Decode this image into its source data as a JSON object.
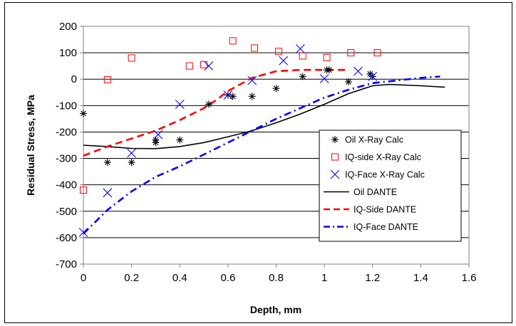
{
  "chart_data": {
    "type": "scatter",
    "xlabel": "Depth, mm",
    "ylabel": "Residual Stress, MPa",
    "xlim": [
      0,
      1.6
    ],
    "ylim": [
      -700,
      200
    ],
    "xticks": [
      "0",
      "0.2",
      "0.4",
      "0.6",
      "0.8",
      "1",
      "1.2",
      "1.4",
      "1.6"
    ],
    "yticks": [
      "200",
      "100",
      "0",
      "-100",
      "-200",
      "-300",
      "-400",
      "-500",
      "-600",
      "-700"
    ],
    "grid": "horizontal",
    "legend_position": "right-inside",
    "series": [
      {
        "name": "Oil X-Ray Calc",
        "kind": "points",
        "marker": "asterisk",
        "color": "#000000",
        "points": [
          [
            0.0,
            -130
          ],
          [
            0.1,
            -315
          ],
          [
            0.2,
            -315
          ],
          [
            0.3,
            -230
          ],
          [
            0.3,
            -240
          ],
          [
            0.4,
            -230
          ],
          [
            0.52,
            -95
          ],
          [
            0.6,
            -60
          ],
          [
            0.62,
            -65
          ],
          [
            0.7,
            -65
          ],
          [
            0.8,
            -35
          ],
          [
            0.91,
            10
          ],
          [
            1.01,
            35
          ],
          [
            1.02,
            35
          ],
          [
            1.1,
            -10
          ],
          [
            1.19,
            20
          ],
          [
            1.2,
            10
          ]
        ]
      },
      {
        "name": "IQ-side X-Ray Calc",
        "kind": "points",
        "marker": "square",
        "color": "#ff0000",
        "points": [
          [
            0.0,
            -420
          ],
          [
            0.1,
            -2
          ],
          [
            0.2,
            80
          ],
          [
            0.44,
            50
          ],
          [
            0.5,
            55
          ],
          [
            0.62,
            145
          ],
          [
            0.71,
            118
          ],
          [
            0.81,
            105
          ],
          [
            0.91,
            88
          ],
          [
            1.01,
            82
          ],
          [
            1.11,
            100
          ],
          [
            1.22,
            100
          ]
        ]
      },
      {
        "name": "IQ-Face X-Ray Calc",
        "kind": "points",
        "marker": "x",
        "color": "#0000ff",
        "points": [
          [
            0.0,
            -580
          ],
          [
            0.1,
            -430
          ],
          [
            0.2,
            -280
          ],
          [
            0.31,
            -210
          ],
          [
            0.4,
            -95
          ],
          [
            0.52,
            50
          ],
          [
            0.6,
            -60
          ],
          [
            0.7,
            -5
          ],
          [
            0.83,
            70
          ],
          [
            0.9,
            115
          ],
          [
            1.0,
            2
          ],
          [
            1.14,
            30
          ],
          [
            1.2,
            10
          ]
        ]
      },
      {
        "name": "Oil DANTE",
        "kind": "line",
        "style": "solid",
        "color": "#000000",
        "points": [
          [
            0.0,
            -250
          ],
          [
            0.1,
            -255
          ],
          [
            0.2,
            -262
          ],
          [
            0.3,
            -263
          ],
          [
            0.4,
            -255
          ],
          [
            0.5,
            -240
          ],
          [
            0.6,
            -218
          ],
          [
            0.7,
            -195
          ],
          [
            0.8,
            -165
          ],
          [
            0.9,
            -132
          ],
          [
            1.0,
            -95
          ],
          [
            1.1,
            -55
          ],
          [
            1.2,
            -25
          ],
          [
            1.27,
            -20
          ],
          [
            1.4,
            -25
          ],
          [
            1.5,
            -30
          ]
        ]
      },
      {
        "name": "IQ-Side DANTE",
        "kind": "line",
        "style": "dash",
        "color": "#ff0000",
        "points": [
          [
            0.0,
            -290
          ],
          [
            0.1,
            -255
          ],
          [
            0.2,
            -225
          ],
          [
            0.3,
            -195
          ],
          [
            0.4,
            -155
          ],
          [
            0.5,
            -110
          ],
          [
            0.55,
            -80
          ],
          [
            0.6,
            -45
          ],
          [
            0.7,
            5
          ],
          [
            0.8,
            30
          ],
          [
            0.9,
            35
          ],
          [
            1.0,
            35
          ],
          [
            1.1,
            35
          ]
        ]
      },
      {
        "name": "IQ-Face DANTE",
        "kind": "line",
        "style": "dashdot",
        "color": "#0000ff",
        "points": [
          [
            0.0,
            -585
          ],
          [
            0.1,
            -495
          ],
          [
            0.2,
            -425
          ],
          [
            0.3,
            -370
          ],
          [
            0.4,
            -330
          ],
          [
            0.5,
            -285
          ],
          [
            0.6,
            -240
          ],
          [
            0.7,
            -195
          ],
          [
            0.8,
            -150
          ],
          [
            0.9,
            -110
          ],
          [
            1.0,
            -70
          ],
          [
            1.1,
            -40
          ],
          [
            1.2,
            -15
          ],
          [
            1.3,
            -5
          ],
          [
            1.4,
            5
          ],
          [
            1.48,
            10
          ]
        ]
      }
    ]
  }
}
